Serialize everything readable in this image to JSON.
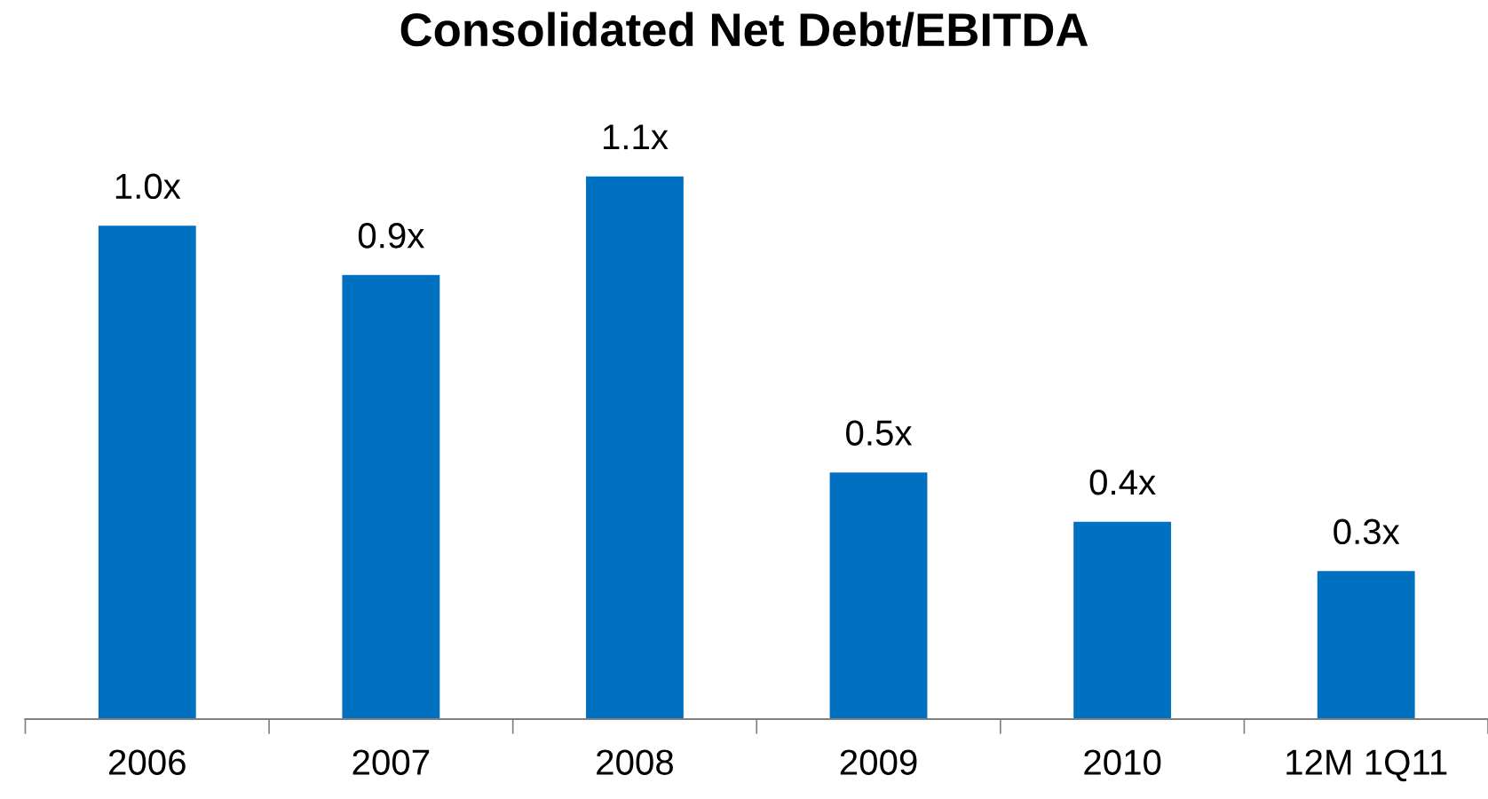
{
  "chart_data": {
    "type": "bar",
    "title": "Consolidated Net Debt/EBITDA",
    "categories": [
      "2006",
      "2007",
      "2008",
      "2009",
      "2010",
      "12M 1Q11"
    ],
    "values": [
      1.0,
      0.9,
      1.1,
      0.5,
      0.4,
      0.3
    ],
    "value_labels": [
      "1.0x",
      "0.9x",
      "1.1x",
      "0.5x",
      "0.4x",
      "0.3x"
    ],
    "color": "#0070c0",
    "grid": false,
    "legend": false
  }
}
